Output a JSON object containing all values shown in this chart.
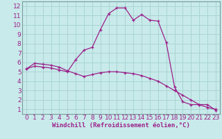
{
  "xlabel": "Windchill (Refroidissement éolien,°C)",
  "bg_color": "#c8eaea",
  "line_color": "#9b1f8a",
  "grid_color": "#aad4d4",
  "spine_color": "#7b9b9b",
  "xlim": [
    -0.5,
    23.5
  ],
  "ylim": [
    0.5,
    12.5
  ],
  "xticks": [
    0,
    1,
    2,
    3,
    4,
    5,
    6,
    7,
    8,
    9,
    10,
    11,
    12,
    13,
    14,
    15,
    16,
    17,
    18,
    19,
    20,
    21,
    22,
    23
  ],
  "yticks": [
    1,
    2,
    3,
    4,
    5,
    6,
    7,
    8,
    9,
    10,
    11,
    12
  ],
  "series1_x": [
    0,
    1,
    2,
    3,
    4,
    5,
    6,
    7,
    8,
    9,
    10,
    11,
    12,
    13,
    14,
    15,
    16,
    17,
    18,
    19,
    20,
    21,
    22,
    23
  ],
  "series1_y": [
    5.3,
    5.9,
    5.8,
    5.7,
    5.5,
    5.1,
    4.8,
    4.5,
    4.7,
    4.9,
    5.0,
    5.0,
    4.9,
    4.8,
    4.6,
    4.3,
    4.0,
    3.5,
    3.0,
    2.5,
    2.0,
    1.5,
    1.2,
    1.0
  ],
  "series2_x": [
    0,
    1,
    2,
    3,
    4,
    5,
    6,
    7,
    8,
    9,
    10,
    11,
    12,
    13,
    14,
    15,
    16,
    17,
    18,
    19,
    20,
    21,
    22,
    23
  ],
  "series2_y": [
    5.3,
    5.6,
    5.5,
    5.4,
    5.2,
    5.0,
    6.3,
    7.3,
    7.6,
    9.5,
    11.2,
    11.8,
    11.8,
    10.5,
    11.1,
    10.5,
    10.4,
    8.1,
    3.4,
    1.8,
    1.5,
    1.5,
    1.5,
    0.9
  ],
  "tick_fontsize": 6.5,
  "xlabel_fontsize": 6.5
}
